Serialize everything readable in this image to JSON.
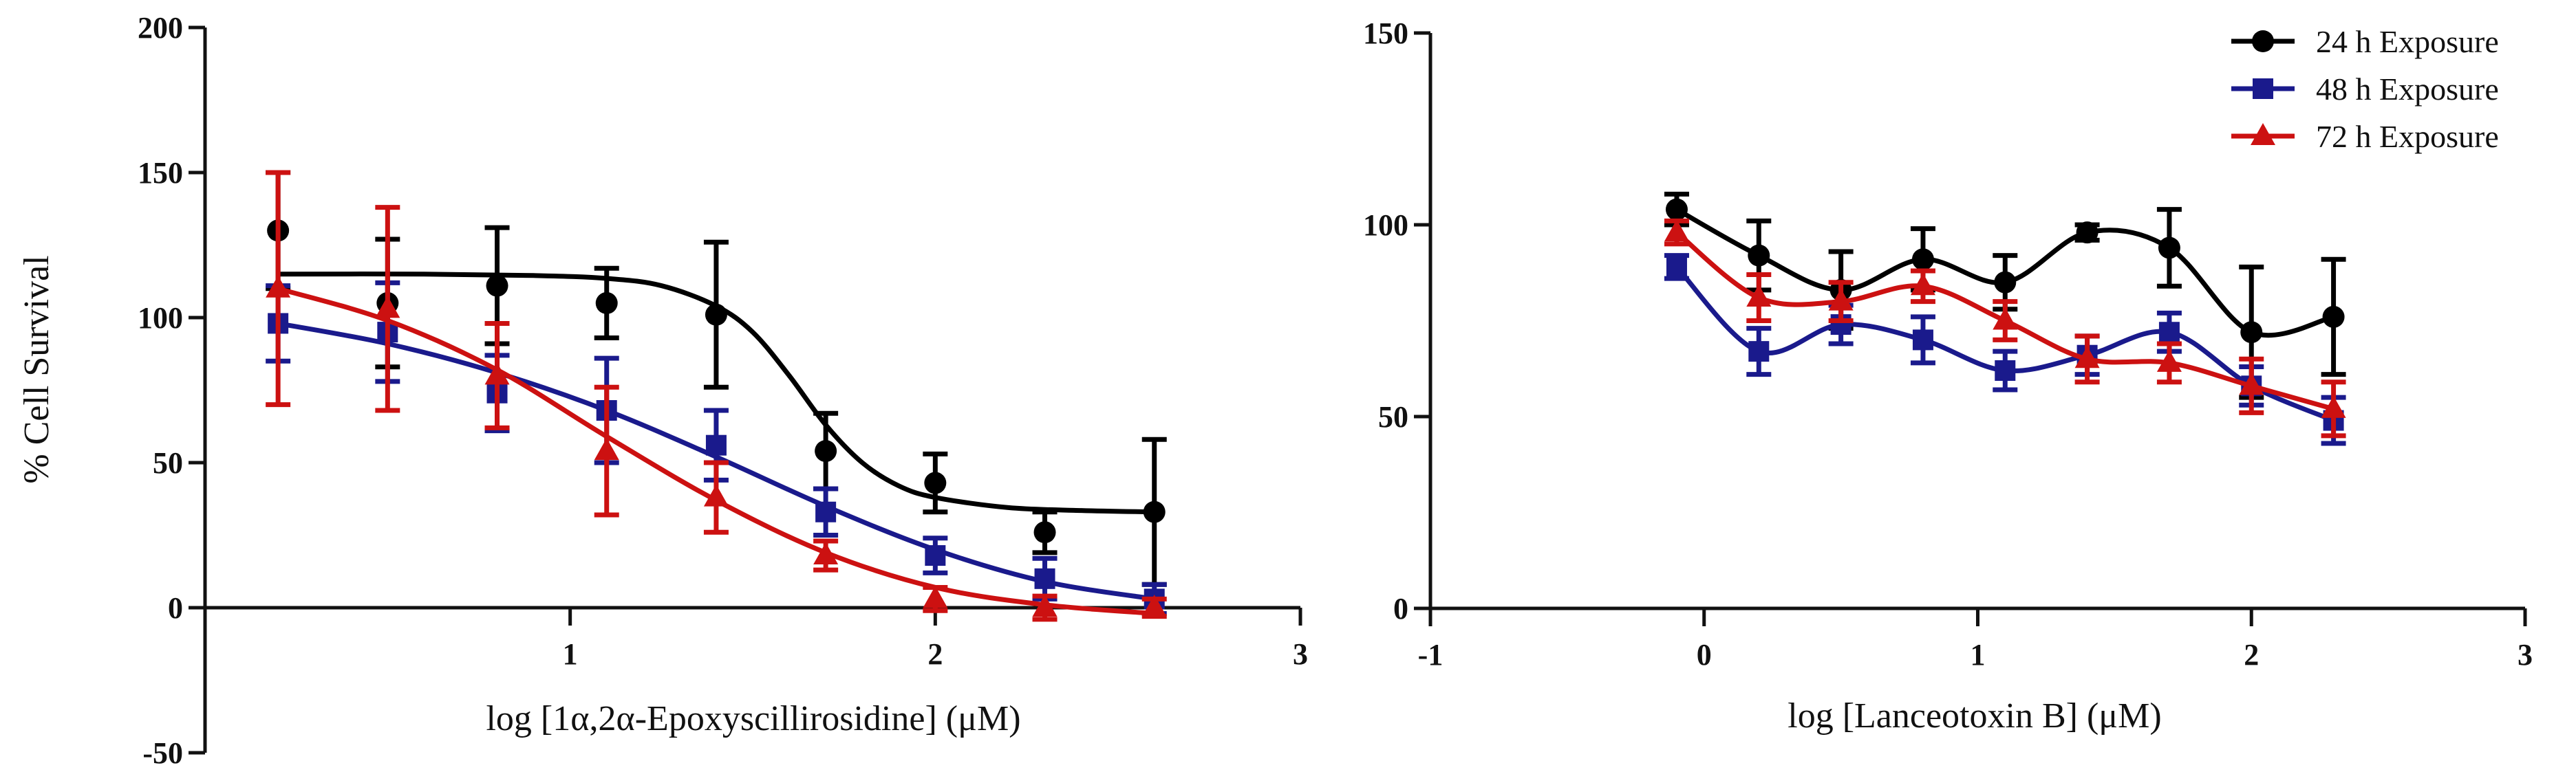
{
  "chart_data": [
    {
      "type": "line",
      "ylabel": "% Cell Survival",
      "xlabel": "log [1α,2α-Epoxyscillirosidine] (μM)",
      "xlim": [
        0,
        3
      ],
      "ylim": [
        -50,
        200
      ],
      "xticks": [
        1,
        2,
        3
      ],
      "xtick_labels": [
        "1",
        "2",
        "3"
      ],
      "yticks": [
        -50,
        0,
        50,
        100,
        150,
        200
      ],
      "ytick_labels": [
        "-50",
        "0",
        "50",
        "100",
        "150",
        "200"
      ],
      "series": [
        {
          "name": "24 h Exposure",
          "color": "#000000",
          "marker": "circle",
          "x": [
            0.2,
            0.5,
            0.8,
            1.1,
            1.4,
            1.7,
            2.0,
            2.3,
            2.6
          ],
          "y": [
            130,
            105,
            111,
            105,
            101,
            54,
            43,
            26,
            33
          ],
          "err": [
            20,
            22,
            20,
            12,
            25,
            13,
            10,
            7,
            25
          ],
          "fit": [
            [
              0.2,
              115
            ],
            [
              0.6,
              115
            ],
            [
              0.9,
              114.5
            ],
            [
              1.1,
              113.5
            ],
            [
              1.25,
              111
            ],
            [
              1.4,
              104
            ],
            [
              1.5,
              95
            ],
            [
              1.6,
              80
            ],
            [
              1.7,
              63
            ],
            [
              1.8,
              50
            ],
            [
              1.9,
              42
            ],
            [
              2.0,
              38
            ],
            [
              2.2,
              34.5
            ],
            [
              2.4,
              33.5
            ],
            [
              2.6,
              33
            ]
          ]
        },
        {
          "name": "48 h Exposure",
          "color": "#1a1a8c",
          "marker": "square",
          "x": [
            0.2,
            0.5,
            0.8,
            1.1,
            1.4,
            1.7,
            2.0,
            2.3,
            2.6
          ],
          "y": [
            98,
            95,
            74,
            68,
            56,
            33,
            18,
            10,
            3
          ],
          "err": [
            13,
            17,
            13,
            18,
            12,
            8,
            6,
            7,
            5
          ],
          "fit": [
            [
              0.2,
              98
            ],
            [
              0.5,
              91
            ],
            [
              0.8,
              81
            ],
            [
              1.1,
              68
            ],
            [
              1.4,
              52
            ],
            [
              1.7,
              35
            ],
            [
              2.0,
              20
            ],
            [
              2.3,
              9
            ],
            [
              2.6,
              3
            ]
          ]
        },
        {
          "name": "72 h Exposure",
          "color": "#cc1111",
          "marker": "triangle",
          "x": [
            0.2,
            0.5,
            0.8,
            1.1,
            1.4,
            1.7,
            2.0,
            2.3,
            2.6
          ],
          "y": [
            110,
            103,
            80,
            54,
            38,
            18,
            3,
            0,
            0
          ],
          "err": [
            40,
            35,
            18,
            22,
            12,
            5,
            4,
            4,
            3
          ],
          "fit": [
            [
              0.2,
              110
            ],
            [
              0.5,
              99
            ],
            [
              0.8,
              82
            ],
            [
              1.1,
              59
            ],
            [
              1.4,
              37
            ],
            [
              1.7,
              19
            ],
            [
              2.0,
              7
            ],
            [
              2.3,
              1
            ],
            [
              2.6,
              -2
            ]
          ]
        }
      ]
    },
    {
      "type": "line",
      "xlabel": "log [Lanceotoxin B] (μM)",
      "xlim": [
        -1,
        3
      ],
      "ylim": [
        0,
        150
      ],
      "xticks": [
        -1,
        0,
        1,
        2,
        3
      ],
      "xtick_labels": [
        "-1",
        "0",
        "1",
        "2",
        "3"
      ],
      "yticks": [
        0,
        50,
        100,
        150
      ],
      "ytick_labels": [
        "0",
        "50",
        "100",
        "150"
      ],
      "legend": {
        "position": "top-right",
        "entries": [
          "24 h Exposure",
          "48 h Exposure",
          "72 h Exposure"
        ]
      },
      "series": [
        {
          "name": "24 h Exposure",
          "color": "#000000",
          "marker": "circle",
          "x": [
            -0.1,
            0.2,
            0.5,
            0.8,
            1.1,
            1.4,
            1.7,
            2.0,
            2.3
          ],
          "y": [
            104,
            92,
            83,
            91,
            85,
            98,
            94,
            72,
            76
          ],
          "err": [
            4,
            9,
            10,
            8,
            7,
            2,
            10,
            17,
            15
          ]
        },
        {
          "name": "48 h Exposure",
          "color": "#1a1a8c",
          "marker": "square",
          "x": [
            -0.1,
            0.2,
            0.5,
            0.8,
            1.1,
            1.4,
            1.7,
            2.0,
            2.3
          ],
          "y": [
            89,
            67,
            74,
            70,
            62,
            66,
            72,
            58,
            49
          ],
          "err": [
            3,
            6,
            5,
            6,
            5,
            5,
            5,
            5,
            6
          ]
        },
        {
          "name": "72 h Exposure",
          "color": "#cc1111",
          "marker": "triangle",
          "x": [
            -0.1,
            0.2,
            0.5,
            0.8,
            1.1,
            1.4,
            1.7,
            2.0,
            2.3
          ],
          "y": [
            98,
            81,
            80,
            84,
            75,
            65,
            64,
            58,
            52
          ],
          "err": [
            3,
            6,
            5,
            4,
            5,
            6,
            5,
            7,
            7
          ]
        }
      ]
    }
  ]
}
